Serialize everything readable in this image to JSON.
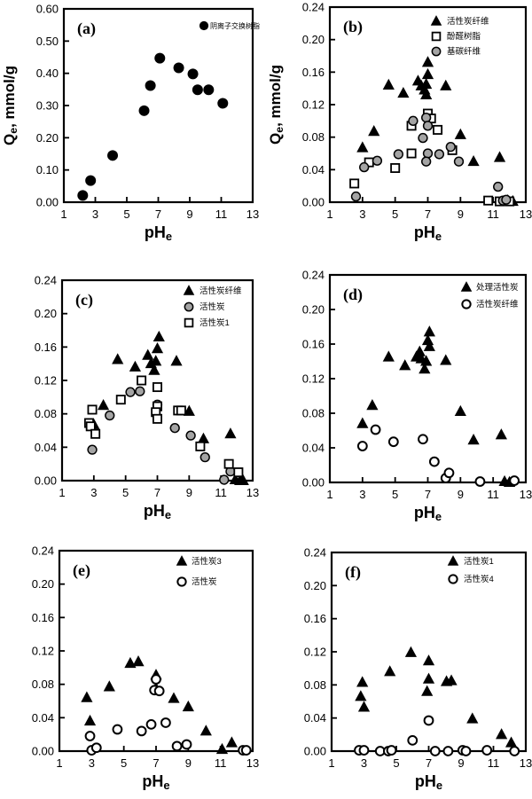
{
  "colors": {
    "marker_black": "#000000",
    "gray_fill": "#a4a4a4",
    "open_fill": "#ffffff",
    "axis": "#000000",
    "background": "#ffffff"
  },
  "chart_data": [
    {
      "type": "scatter",
      "panel_label": "(a)",
      "xlabel": "pH_e",
      "ylabel": "Q_e, mmol/g",
      "show_ylabel": true,
      "xlim": [
        1,
        13
      ],
      "ylim": [
        0,
        0.6
      ],
      "xtick_labels": [
        "1",
        "3",
        "5",
        "7",
        "9",
        "11",
        "13"
      ],
      "xticks": [
        1,
        3,
        5,
        7,
        9,
        11,
        13
      ],
      "yticks": [
        0,
        0.1,
        0.2,
        0.3,
        0.4,
        0.5,
        0.6
      ],
      "ytick_labels": [
        "0.00",
        "0.10",
        "0.20",
        "0.30",
        "0.40",
        "0.50",
        "0.60"
      ],
      "grid": false,
      "legend_position": "top-right",
      "series": [
        {
          "name": "阴离子交换树脂",
          "marker": "filled-circle",
          "points": [
            [
              2.2,
              0.021
            ],
            [
              2.7,
              0.067
            ],
            [
              4.1,
              0.145
            ],
            [
              6.1,
              0.284
            ],
            [
              6.5,
              0.362
            ],
            [
              7.1,
              0.447
            ],
            [
              8.3,
              0.417
            ],
            [
              9.2,
              0.398
            ],
            [
              9.5,
              0.349
            ],
            [
              10.2,
              0.349
            ],
            [
              11.1,
              0.307
            ]
          ]
        }
      ]
    },
    {
      "type": "scatter",
      "panel_label": "(b)",
      "xlabel": "pH_e",
      "ylabel": "Q_e, mmol/g",
      "show_ylabel": true,
      "xlim": [
        1,
        13
      ],
      "ylim": [
        0,
        0.24
      ],
      "xtick_labels": [
        "1",
        "3",
        "5",
        "7",
        "9",
        "11",
        "13"
      ],
      "xticks": [
        1,
        3,
        5,
        7,
        9,
        11,
        13
      ],
      "yticks": [
        0,
        0.04,
        0.08,
        0.12,
        0.16,
        0.2,
        0.24
      ],
      "ytick_labels": [
        "0.00",
        "0.04",
        "0.08",
        "0.12",
        "0.16",
        "0.20",
        "0.24"
      ],
      "grid": false,
      "legend_position": "top-right",
      "series": [
        {
          "name": "活性炭纤维",
          "marker": "filled-triangle",
          "points": [
            [
              3.0,
              0.067
            ],
            [
              3.7,
              0.087
            ],
            [
              4.6,
              0.144
            ],
            [
              5.5,
              0.134
            ],
            [
              6.4,
              0.149
            ],
            [
              6.6,
              0.143
            ],
            [
              6.8,
              0.138
            ],
            [
              6.9,
              0.132
            ],
            [
              6.9,
              0.145
            ],
            [
              7.0,
              0.157
            ],
            [
              7.0,
              0.172
            ],
            [
              8.1,
              0.143
            ],
            [
              9.0,
              0.083
            ],
            [
              9.8,
              0.05
            ],
            [
              11.4,
              0.055
            ],
            [
              11.9,
              0.002
            ],
            [
              12.2,
              0.001
            ]
          ]
        },
        {
          "name": "酚醛树脂",
          "marker": "open-square",
          "points": [
            [
              2.5,
              0.023
            ],
            [
              3.4,
              0.049
            ],
            [
              5.0,
              0.042
            ],
            [
              6.0,
              0.06
            ],
            [
              6.0,
              0.094
            ],
            [
              7.0,
              0.109
            ],
            [
              7.2,
              0.103
            ],
            [
              7.6,
              0.089
            ],
            [
              8.5,
              0.064
            ],
            [
              10.7,
              0.002
            ],
            [
              11.4,
              0.001
            ],
            [
              12.0,
              0.001
            ]
          ]
        },
        {
          "name": "基碳纤维",
          "marker": "gray-circle",
          "points": [
            [
              2.6,
              0.007
            ],
            [
              3.1,
              0.043
            ],
            [
              3.9,
              0.051
            ],
            [
              5.2,
              0.059
            ],
            [
              6.1,
              0.1
            ],
            [
              6.7,
              0.079
            ],
            [
              6.9,
              0.104
            ],
            [
              7.0,
              0.094
            ],
            [
              7.0,
              0.06
            ],
            [
              6.9,
              0.05
            ],
            [
              7.7,
              0.059
            ],
            [
              8.4,
              0.068
            ],
            [
              8.9,
              0.05
            ],
            [
              11.3,
              0.019
            ],
            [
              11.6,
              0.002
            ],
            [
              11.8,
              0.003
            ]
          ]
        }
      ]
    },
    {
      "type": "scatter",
      "panel_label": "(c)",
      "xlabel": "pH_e",
      "ylabel": "Q_e, mmol/g",
      "show_ylabel": false,
      "xlim": [
        1,
        13
      ],
      "ylim": [
        0,
        0.24
      ],
      "xtick_labels": [
        "1",
        "3",
        "5",
        "7",
        "9",
        "11",
        "13"
      ],
      "xticks": [
        1,
        3,
        5,
        7,
        9,
        11,
        13
      ],
      "yticks": [
        0,
        0.04,
        0.08,
        0.12,
        0.16,
        0.2,
        0.24
      ],
      "ytick_labels": [
        "0.00",
        "0.04",
        "0.08",
        "0.12",
        "0.16",
        "0.20",
        "0.24"
      ],
      "grid": false,
      "legend_position": "top-right",
      "series": [
        {
          "name": "活性炭纤维",
          "marker": "filled-triangle",
          "points": [
            [
              3.0,
              0.067
            ],
            [
              3.6,
              0.09
            ],
            [
              4.5,
              0.145
            ],
            [
              5.6,
              0.136
            ],
            [
              6.4,
              0.15
            ],
            [
              6.6,
              0.14
            ],
            [
              6.8,
              0.132
            ],
            [
              6.9,
              0.143
            ],
            [
              7.0,
              0.158
            ],
            [
              7.1,
              0.172
            ],
            [
              8.2,
              0.143
            ],
            [
              9.0,
              0.083
            ],
            [
              9.9,
              0.05
            ],
            [
              11.6,
              0.056
            ],
            [
              11.9,
              0.001
            ],
            [
              12.2,
              0.0
            ],
            [
              12.4,
              0.0
            ]
          ]
        },
        {
          "name": "活性炭",
          "marker": "gray-circle",
          "points": [
            [
              2.9,
              0.037
            ],
            [
              4.0,
              0.078
            ],
            [
              5.3,
              0.106
            ],
            [
              5.9,
              0.107
            ],
            [
              7.0,
              0.091
            ],
            [
              8.1,
              0.063
            ],
            [
              9.1,
              0.054
            ],
            [
              10.0,
              0.028
            ],
            [
              11.2,
              0.001
            ],
            [
              11.6,
              0.011
            ]
          ]
        },
        {
          "name": "活性炭1",
          "marker": "open-square",
          "points": [
            [
              2.7,
              0.069
            ],
            [
              2.8,
              0.065
            ],
            [
              2.9,
              0.085
            ],
            [
              3.1,
              0.056
            ],
            [
              4.7,
              0.097
            ],
            [
              6.0,
              0.12
            ],
            [
              7.0,
              0.112
            ],
            [
              7.0,
              0.089
            ],
            [
              6.9,
              0.082
            ],
            [
              7.0,
              0.074
            ],
            [
              8.3,
              0.084
            ],
            [
              8.5,
              0.084
            ],
            [
              9.7,
              0.041
            ],
            [
              11.5,
              0.02
            ],
            [
              12.1,
              0.01
            ]
          ]
        }
      ]
    },
    {
      "type": "scatter",
      "panel_label": "(d)",
      "xlabel": "pH_e",
      "ylabel": "Q_e, mmol/g",
      "show_ylabel": false,
      "xlim": [
        1,
        13
      ],
      "ylim": [
        0,
        0.24
      ],
      "xtick_labels": [
        "1",
        "3",
        "5",
        "7",
        "9",
        "11",
        "13"
      ],
      "xticks": [
        1,
        3,
        5,
        7,
        9,
        11,
        13
      ],
      "yticks": [
        0,
        0.04,
        0.08,
        0.12,
        0.16,
        0.2,
        0.24
      ],
      "ytick_labels": [
        "0.00",
        "0.04",
        "0.08",
        "0.12",
        "0.16",
        "0.20",
        "0.24"
      ],
      "grid": false,
      "legend_position": "top-right",
      "series": [
        {
          "name": "处理活性炭",
          "marker": "filled-triangle",
          "points": [
            [
              3.0,
              0.068
            ],
            [
              3.6,
              0.089
            ],
            [
              4.6,
              0.145
            ],
            [
              5.6,
              0.135
            ],
            [
              6.3,
              0.145
            ],
            [
              6.5,
              0.151
            ],
            [
              6.6,
              0.143
            ],
            [
              6.8,
              0.131
            ],
            [
              6.9,
              0.14
            ],
            [
              7.0,
              0.164
            ],
            [
              7.1,
              0.174
            ],
            [
              7.1,
              0.157
            ],
            [
              8.1,
              0.141
            ],
            [
              9.0,
              0.082
            ],
            [
              9.8,
              0.049
            ],
            [
              11.5,
              0.055
            ],
            [
              11.7,
              0.001
            ],
            [
              12.0,
              0.0
            ]
          ]
        },
        {
          "name": "活性炭纤维",
          "marker": "open-circle",
          "points": [
            [
              3.0,
              0.042
            ],
            [
              3.8,
              0.061
            ],
            [
              4.9,
              0.047
            ],
            [
              6.7,
              0.05
            ],
            [
              7.4,
              0.024
            ],
            [
              8.1,
              0.005
            ],
            [
              8.3,
              0.011
            ],
            [
              10.2,
              0.001
            ],
            [
              12.3,
              0.002
            ]
          ]
        }
      ]
    },
    {
      "type": "scatter",
      "panel_label": "(e)",
      "xlabel": "pH_e",
      "ylabel": "Q_e, mmol/g",
      "show_ylabel": false,
      "xlim": [
        1,
        13
      ],
      "ylim": [
        0,
        0.24
      ],
      "xtick_labels": [
        "1",
        "3",
        "5",
        "7",
        "9",
        "11",
        "13"
      ],
      "xticks": [
        1,
        3,
        5,
        7,
        9,
        11,
        13
      ],
      "yticks": [
        0,
        0.04,
        0.08,
        0.12,
        0.16,
        0.2,
        0.24
      ],
      "ytick_labels": [
        "0.00",
        "0.04",
        "0.08",
        "0.12",
        "0.16",
        "0.20",
        "0.24"
      ],
      "grid": false,
      "legend_position": "top-right",
      "series": [
        {
          "name": "活性炭3",
          "marker": "filled-triangle",
          "points": [
            [
              2.7,
              0.064
            ],
            [
              2.9,
              0.036
            ],
            [
              4.1,
              0.077
            ],
            [
              5.4,
              0.105
            ],
            [
              5.9,
              0.107
            ],
            [
              7.0,
              0.091
            ],
            [
              7.0,
              0.075
            ],
            [
              8.1,
              0.063
            ],
            [
              9.0,
              0.053
            ],
            [
              10.1,
              0.024
            ],
            [
              11.1,
              0.002
            ],
            [
              11.7,
              0.01
            ]
          ]
        },
        {
          "name": "活性炭",
          "marker": "open-circle",
          "points": [
            [
              2.9,
              0.018
            ],
            [
              3.0,
              0.001
            ],
            [
              3.3,
              0.004
            ],
            [
              4.6,
              0.026
            ],
            [
              6.1,
              0.024
            ],
            [
              6.7,
              0.032
            ],
            [
              7.0,
              0.086
            ],
            [
              6.9,
              0.073
            ],
            [
              7.2,
              0.072
            ],
            [
              7.6,
              0.034
            ],
            [
              8.3,
              0.006
            ],
            [
              8.9,
              0.008
            ],
            [
              12.4,
              0.001
            ],
            [
              12.6,
              0.001
            ]
          ]
        }
      ]
    },
    {
      "type": "scatter",
      "panel_label": "(f)",
      "xlabel": "pH_e",
      "ylabel": "Q_e, mmol/g",
      "show_ylabel": false,
      "xlim": [
        1,
        13
      ],
      "ylim": [
        0,
        0.24
      ],
      "xtick_labels": [
        "1",
        "3",
        "5",
        "7",
        "9",
        "11",
        "13"
      ],
      "xticks": [
        1,
        3,
        5,
        7,
        9,
        11,
        13
      ],
      "yticks": [
        0,
        0.04,
        0.08,
        0.12,
        0.16,
        0.2,
        0.24
      ],
      "ytick_labels": [
        "0.00",
        "0.04",
        "0.08",
        "0.12",
        "0.16",
        "0.20",
        "0.24"
      ],
      "grid": false,
      "legend_position": "top-right",
      "series": [
        {
          "name": "活性炭1",
          "marker": "filled-triangle",
          "points": [
            [
              2.8,
              0.066
            ],
            [
              2.9,
              0.083
            ],
            [
              3.0,
              0.053
            ],
            [
              4.6,
              0.096
            ],
            [
              5.9,
              0.119
            ],
            [
              7.0,
              0.109
            ],
            [
              7.0,
              0.087
            ],
            [
              6.9,
              0.072
            ],
            [
              8.1,
              0.084
            ],
            [
              8.4,
              0.085
            ],
            [
              9.7,
              0.039
            ],
            [
              11.5,
              0.02
            ],
            [
              12.1,
              0.01
            ]
          ]
        },
        {
          "name": "活性炭4",
          "marker": "open-circle",
          "points": [
            [
              2.7,
              0.001
            ],
            [
              3.0,
              0.001
            ],
            [
              4.0,
              0.0
            ],
            [
              4.5,
              0.0
            ],
            [
              4.7,
              0.001
            ],
            [
              6.0,
              0.013
            ],
            [
              7.0,
              0.037
            ],
            [
              7.4,
              0.0
            ],
            [
              8.2,
              0.0
            ],
            [
              9.1,
              0.001
            ],
            [
              9.3,
              0.0
            ],
            [
              10.6,
              0.001
            ],
            [
              12.3,
              0.0
            ]
          ]
        }
      ]
    }
  ]
}
